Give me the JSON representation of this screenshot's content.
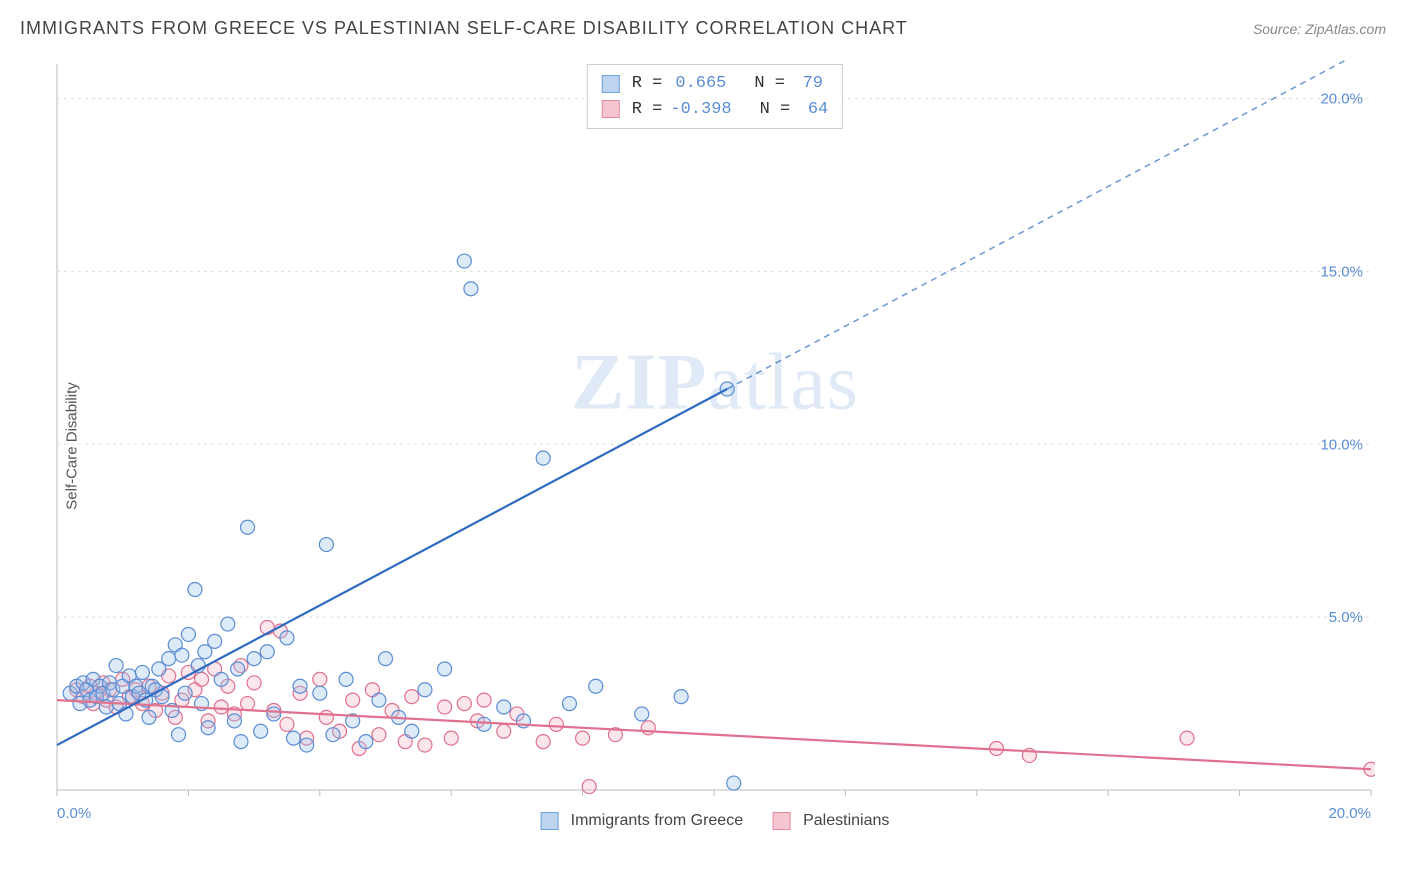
{
  "title": "IMMIGRANTS FROM GREECE VS PALESTINIAN SELF-CARE DISABILITY CORRELATION CHART",
  "source": "Source: ZipAtlas.com",
  "y_axis_label": "Self-Care Disability",
  "watermark_bold": "ZIP",
  "watermark_rest": "atlas",
  "chart": {
    "type": "scatter",
    "background_color": "#ffffff",
    "grid_color": "#dddddd",
    "axis_tick_color": "#bbbbbb",
    "text_color": "#555555",
    "value_color": "#5b8dd6",
    "xlim": [
      0,
      20
    ],
    "ylim": [
      0,
      21
    ],
    "x_ticks": [
      0,
      2,
      4,
      6,
      8,
      10,
      12,
      14,
      16,
      18,
      20
    ],
    "x_tick_labels": {
      "0": "0.0%",
      "20": "20.0%"
    },
    "y_ticks": [
      5,
      10,
      15,
      20
    ],
    "y_tick_labels": {
      "5": "5.0%",
      "10": "10.0%",
      "15": "15.0%",
      "20": "20.0%"
    },
    "marker_radius": 7,
    "marker_stroke_width": 1.2,
    "marker_fill_opacity": 0.35,
    "trend_line_width": 2.2,
    "trend_dash": "6,5"
  },
  "correlation_legend": [
    {
      "swatch_fill": "#bcd4ee",
      "swatch_stroke": "#6fa0da",
      "r": "0.665",
      "n": "79"
    },
    {
      "swatch_fill": "#f6c6d0",
      "swatch_stroke": "#e68aa1",
      "r": "-0.398",
      "n": "64"
    }
  ],
  "series_legend": [
    {
      "swatch_fill": "#bcd4ee",
      "swatch_stroke": "#6fa0da",
      "label": "Immigrants from Greece"
    },
    {
      "swatch_fill": "#f6c6d0",
      "swatch_stroke": "#e68aa1",
      "label": "Palestinians"
    }
  ],
  "series": {
    "greece": {
      "fill": "#9fc4e8",
      "stroke": "#5b8dd6",
      "trend_color": "#2e6bc0",
      "trend": {
        "x1": 0,
        "y1": 1.3,
        "x2": 10.2,
        "y2": 11.6,
        "x2_dash": 20,
        "y2_dash": 21.5
      },
      "points": [
        [
          0.2,
          2.8
        ],
        [
          0.3,
          3.0
        ],
        [
          0.35,
          2.5
        ],
        [
          0.4,
          3.1
        ],
        [
          0.45,
          2.9
        ],
        [
          0.5,
          2.6
        ],
        [
          0.55,
          3.2
        ],
        [
          0.6,
          2.7
        ],
        [
          0.65,
          3.0
        ],
        [
          0.7,
          2.8
        ],
        [
          0.75,
          2.4
        ],
        [
          0.8,
          3.1
        ],
        [
          0.85,
          2.9
        ],
        [
          0.9,
          3.6
        ],
        [
          0.95,
          2.5
        ],
        [
          1.0,
          3.0
        ],
        [
          1.05,
          2.2
        ],
        [
          1.1,
          3.3
        ],
        [
          1.15,
          2.7
        ],
        [
          1.2,
          3.0
        ],
        [
          1.25,
          2.8
        ],
        [
          1.3,
          3.4
        ],
        [
          1.35,
          2.6
        ],
        [
          1.4,
          2.1
        ],
        [
          1.45,
          3.0
        ],
        [
          1.5,
          2.9
        ],
        [
          1.55,
          3.5
        ],
        [
          1.6,
          2.7
        ],
        [
          1.7,
          3.8
        ],
        [
          1.75,
          2.3
        ],
        [
          1.8,
          4.2
        ],
        [
          1.85,
          1.6
        ],
        [
          1.9,
          3.9
        ],
        [
          1.95,
          2.8
        ],
        [
          2.0,
          4.5
        ],
        [
          2.1,
          5.8
        ],
        [
          2.15,
          3.6
        ],
        [
          2.2,
          2.5
        ],
        [
          2.25,
          4.0
        ],
        [
          2.3,
          1.8
        ],
        [
          2.4,
          4.3
        ],
        [
          2.5,
          3.2
        ],
        [
          2.6,
          4.8
        ],
        [
          2.7,
          2.0
        ],
        [
          2.75,
          3.5
        ],
        [
          2.8,
          1.4
        ],
        [
          2.9,
          7.6
        ],
        [
          3.0,
          3.8
        ],
        [
          3.1,
          1.7
        ],
        [
          3.2,
          4.0
        ],
        [
          3.3,
          2.2
        ],
        [
          3.5,
          4.4
        ],
        [
          3.6,
          1.5
        ],
        [
          3.7,
          3.0
        ],
        [
          3.8,
          1.3
        ],
        [
          4.0,
          2.8
        ],
        [
          4.1,
          7.1
        ],
        [
          4.2,
          1.6
        ],
        [
          4.4,
          3.2
        ],
        [
          4.5,
          2.0
        ],
        [
          4.7,
          1.4
        ],
        [
          4.9,
          2.6
        ],
        [
          5.0,
          3.8
        ],
        [
          5.2,
          2.1
        ],
        [
          5.4,
          1.7
        ],
        [
          5.6,
          2.9
        ],
        [
          5.9,
          3.5
        ],
        [
          6.2,
          15.3
        ],
        [
          6.3,
          14.5
        ],
        [
          6.5,
          1.9
        ],
        [
          6.8,
          2.4
        ],
        [
          7.1,
          2.0
        ],
        [
          7.4,
          9.6
        ],
        [
          7.8,
          2.5
        ],
        [
          8.2,
          3.0
        ],
        [
          8.9,
          2.2
        ],
        [
          9.5,
          2.7
        ],
        [
          10.2,
          11.6
        ],
        [
          10.3,
          0.2
        ]
      ]
    },
    "palestinians": {
      "fill": "#f3b8c5",
      "stroke": "#e0718f",
      "trend_color": "#e0718f",
      "trend": {
        "x1": 0,
        "y1": 2.6,
        "x2": 20,
        "y2": 0.6
      },
      "points": [
        [
          0.3,
          2.9
        ],
        [
          0.4,
          2.7
        ],
        [
          0.5,
          3.0
        ],
        [
          0.55,
          2.5
        ],
        [
          0.6,
          2.8
        ],
        [
          0.7,
          3.1
        ],
        [
          0.75,
          2.6
        ],
        [
          0.8,
          2.9
        ],
        [
          0.9,
          2.4
        ],
        [
          1.0,
          3.2
        ],
        [
          1.1,
          2.7
        ],
        [
          1.2,
          2.9
        ],
        [
          1.3,
          2.5
        ],
        [
          1.4,
          3.0
        ],
        [
          1.5,
          2.3
        ],
        [
          1.6,
          2.8
        ],
        [
          1.7,
          3.3
        ],
        [
          1.8,
          2.1
        ],
        [
          1.9,
          2.6
        ],
        [
          2.0,
          3.4
        ],
        [
          2.1,
          2.9
        ],
        [
          2.2,
          3.2
        ],
        [
          2.3,
          2.0
        ],
        [
          2.4,
          3.5
        ],
        [
          2.5,
          2.4
        ],
        [
          2.6,
          3.0
        ],
        [
          2.7,
          2.2
        ],
        [
          2.8,
          3.6
        ],
        [
          2.9,
          2.5
        ],
        [
          3.0,
          3.1
        ],
        [
          3.2,
          4.7
        ],
        [
          3.3,
          2.3
        ],
        [
          3.4,
          4.6
        ],
        [
          3.5,
          1.9
        ],
        [
          3.7,
          2.8
        ],
        [
          3.8,
          1.5
        ],
        [
          4.0,
          3.2
        ],
        [
          4.1,
          2.1
        ],
        [
          4.3,
          1.7
        ],
        [
          4.5,
          2.6
        ],
        [
          4.6,
          1.2
        ],
        [
          4.8,
          2.9
        ],
        [
          4.9,
          1.6
        ],
        [
          5.1,
          2.3
        ],
        [
          5.3,
          1.4
        ],
        [
          5.4,
          2.7
        ],
        [
          5.6,
          1.3
        ],
        [
          5.9,
          2.4
        ],
        [
          6.0,
          1.5
        ],
        [
          6.2,
          2.5
        ],
        [
          6.4,
          2.0
        ],
        [
          6.5,
          2.6
        ],
        [
          6.8,
          1.7
        ],
        [
          7.0,
          2.2
        ],
        [
          7.4,
          1.4
        ],
        [
          7.6,
          1.9
        ],
        [
          8.0,
          1.5
        ],
        [
          8.1,
          0.1
        ],
        [
          8.5,
          1.6
        ],
        [
          9.0,
          1.8
        ],
        [
          14.3,
          1.2
        ],
        [
          14.8,
          1.0
        ],
        [
          17.2,
          1.5
        ],
        [
          20.0,
          0.6
        ]
      ]
    }
  }
}
